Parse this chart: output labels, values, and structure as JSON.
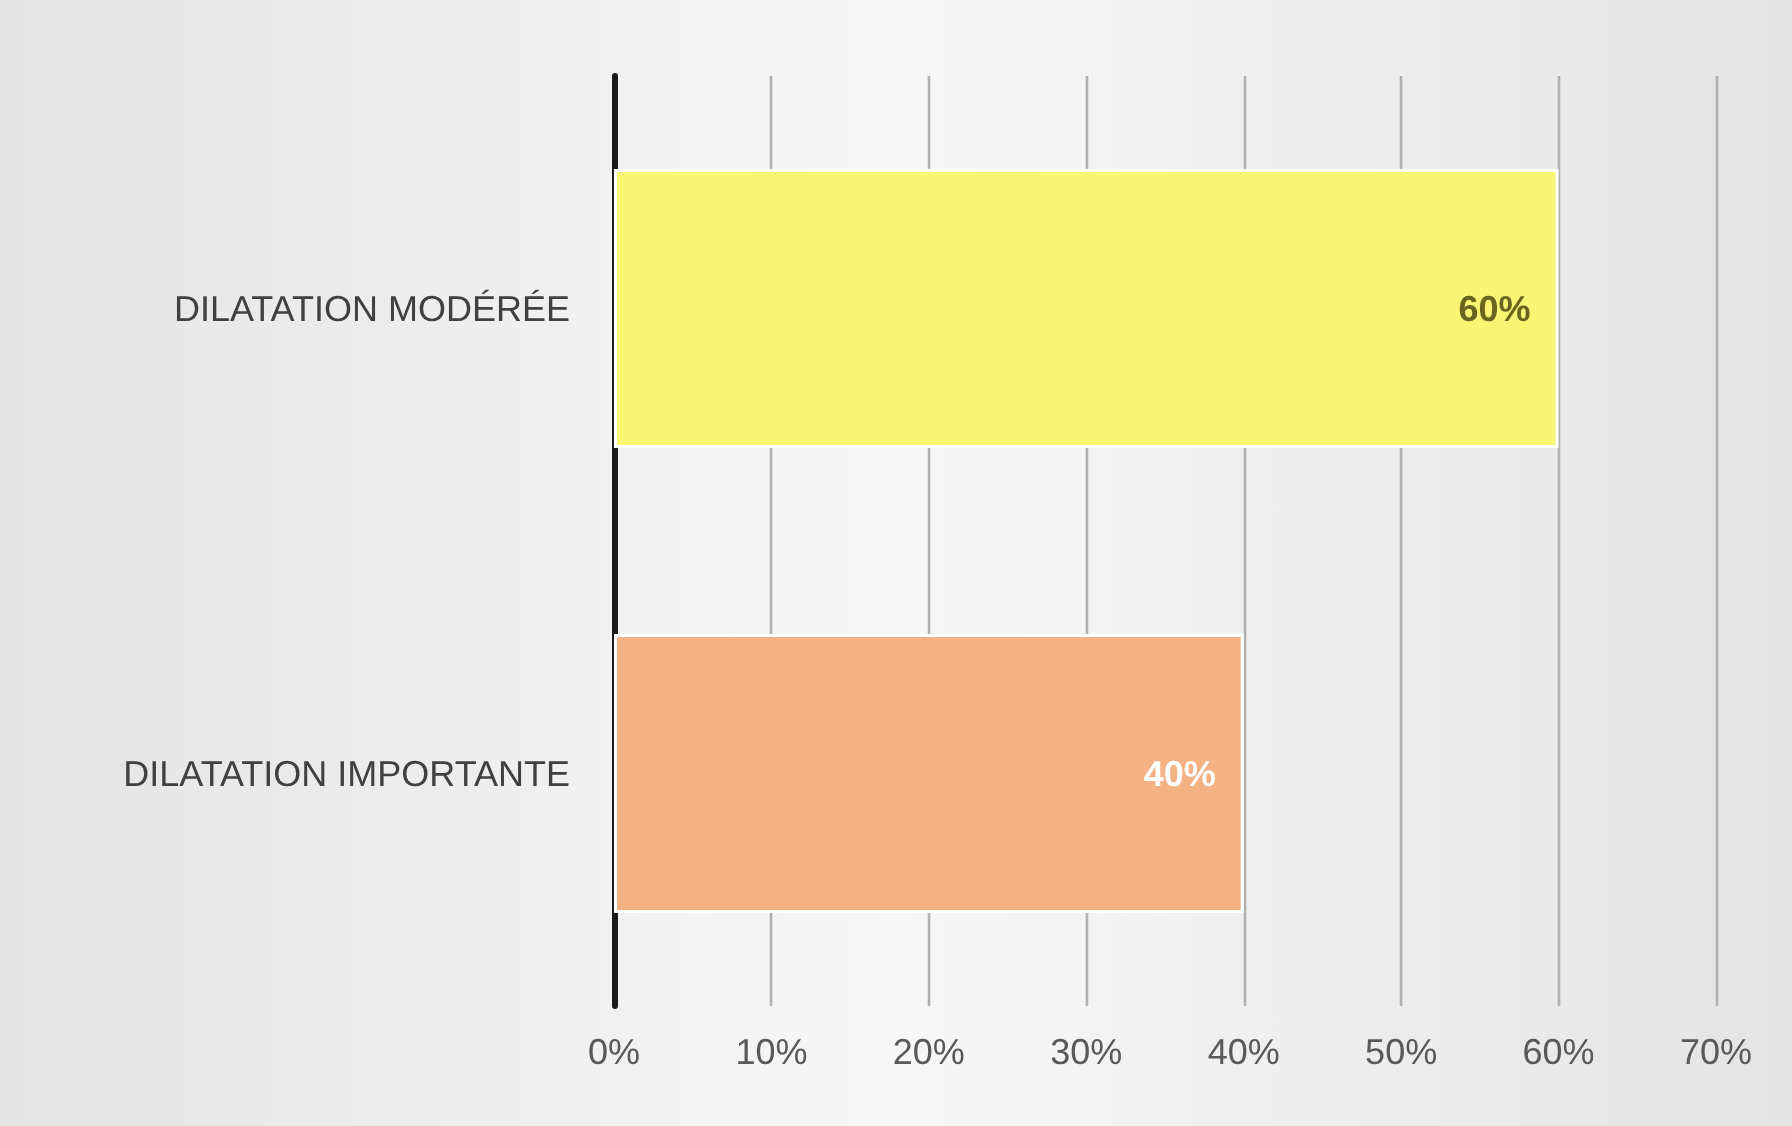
{
  "chart_data": {
    "type": "bar",
    "orientation": "horizontal",
    "categories": [
      "DILATATION MODÉRÉE",
      "DILATATION IMPORTANTE"
    ],
    "values": [
      60,
      40
    ],
    "colors": [
      "#faf473",
      "#f4b183"
    ],
    "value_labels": [
      "60%",
      "40%"
    ],
    "xlim": [
      0,
      70
    ],
    "xticks": [
      {
        "value": 0,
        "label": "0%"
      },
      {
        "value": 10,
        "label": "10%"
      },
      {
        "value": 20,
        "label": "20%"
      },
      {
        "value": 30,
        "label": "30%"
      },
      {
        "value": 40,
        "label": "40%"
      },
      {
        "value": 50,
        "label": "50%"
      },
      {
        "value": 60,
        "label": "60%"
      },
      {
        "value": 70,
        "label": "70%"
      }
    ],
    "grid": "x"
  }
}
